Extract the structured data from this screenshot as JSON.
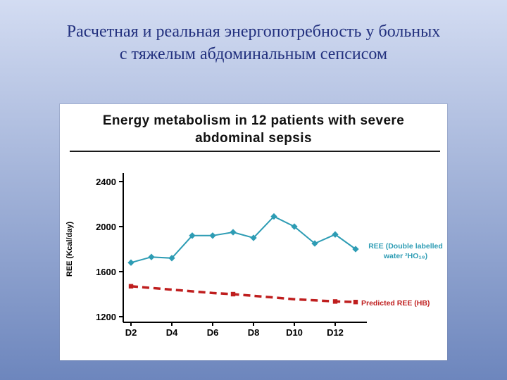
{
  "slide": {
    "title_lines": [
      "Расчетная и реальная энергопотребность у больных",
      "с тяжелым абдоминальным сепсисом"
    ],
    "title_color": "#22307e",
    "background_top": "#d3dcf2",
    "background_bottom": "#6d86bd"
  },
  "chart_data": {
    "type": "line",
    "title": "Energy metabolism in 12 patients with severe abdominal sepsis",
    "title_lines": [
      "Energy metabolism in 12 patients with severe",
      "abdominal sepsis"
    ],
    "ylabel": "REE (Kcal/day)",
    "xlabel": "",
    "x_days": [
      2,
      3,
      4,
      5,
      6,
      7,
      8,
      9,
      10,
      11,
      12,
      13
    ],
    "x_tick_days": [
      2,
      4,
      6,
      8,
      10,
      12
    ],
    "x_tick_labels": [
      "D2",
      "D4",
      "D6",
      "D8",
      "D10",
      "D12"
    ],
    "y_ticks": [
      1200,
      1600,
      2000,
      2400
    ],
    "ylim": [
      1150,
      2480
    ],
    "grid": false,
    "legend_position": "right",
    "series": [
      {
        "name": "REE (Double labelled water ²HO₁₈)",
        "color": "#2d9cb4",
        "line_style": "solid",
        "marker": "diamond",
        "values": [
          1680,
          1730,
          1720,
          1920,
          1920,
          1950,
          1900,
          2090,
          2000,
          1850,
          1930,
          1800
        ]
      },
      {
        "name": "Predicted REE (HB)",
        "color": "#bf1e1e",
        "line_style": "dashed",
        "marker": "square",
        "marker_indices": [
          0,
          5,
          10,
          11
        ],
        "values": [
          1470,
          1455,
          1440,
          1425,
          1410,
          1400,
          1385,
          1370,
          1355,
          1345,
          1335,
          1330
        ]
      }
    ],
    "legend": [
      {
        "lines": [
          "REE (Double labelled",
          "water ²HO₁₈)"
        ],
        "color": "#2d9cb4",
        "position": "right-middle"
      },
      {
        "lines": [
          "Predicted REE (HB)"
        ],
        "color": "#bf1e1e",
        "position": "right-bottom"
      }
    ]
  }
}
